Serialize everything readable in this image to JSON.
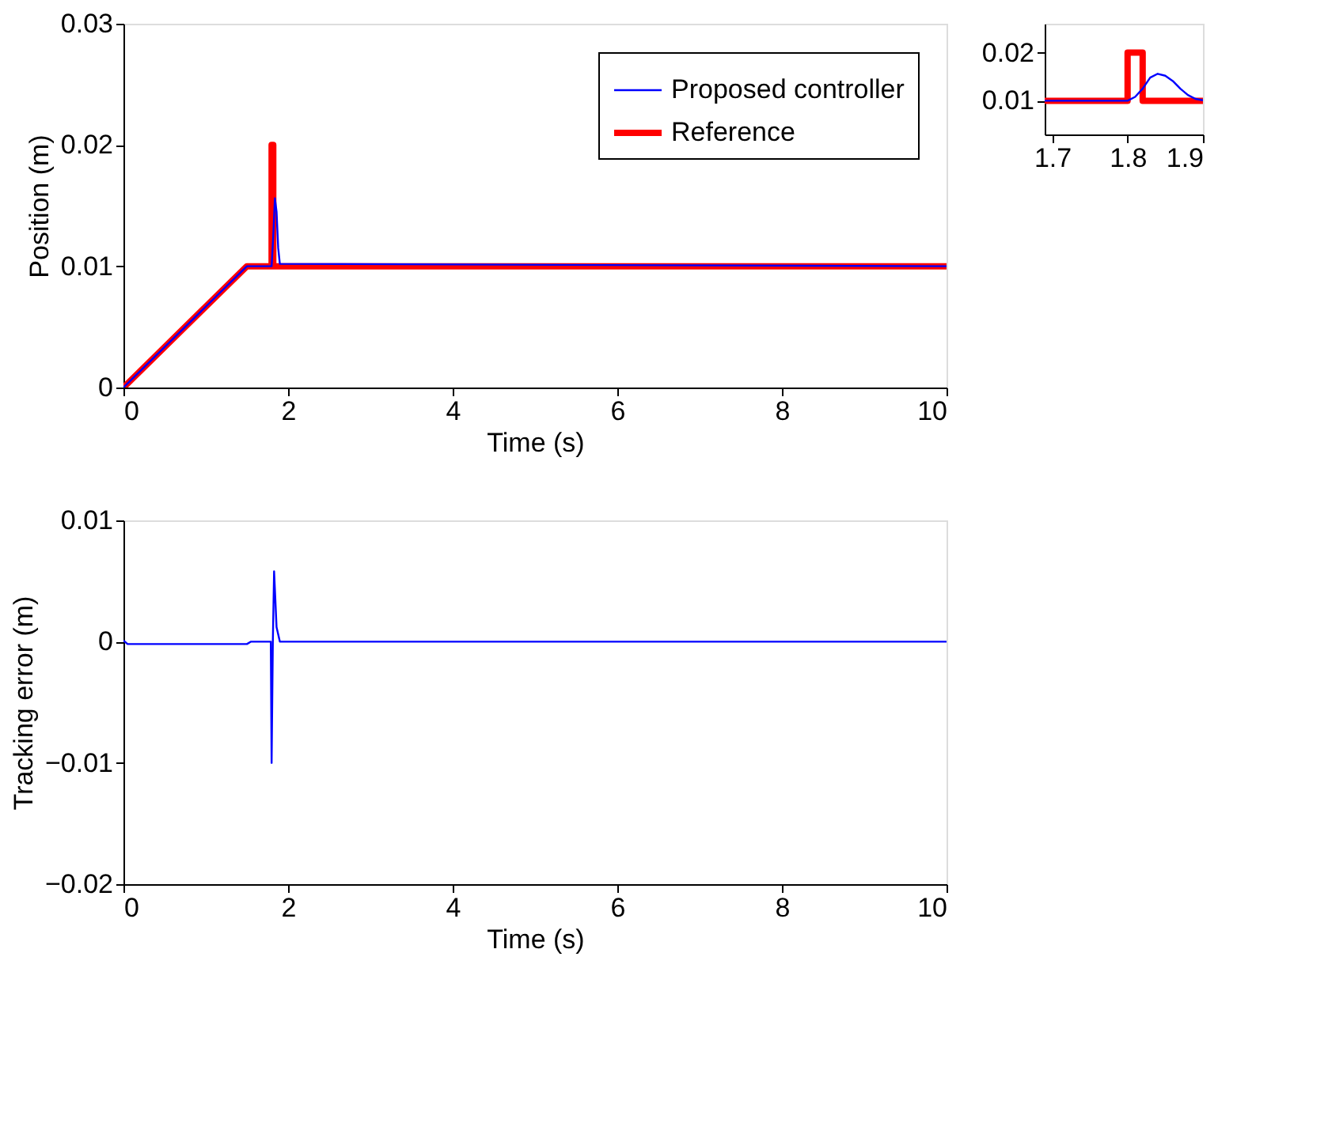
{
  "chart_data": [
    {
      "type": "line",
      "xlabel": "Time (s)",
      "ylabel": "Position (m)",
      "xlim": [
        0,
        10
      ],
      "ylim": [
        0,
        0.03
      ],
      "xticks": [
        0,
        2,
        4,
        6,
        8,
        10
      ],
      "yticks": [
        0,
        0.01,
        0.02,
        0.03
      ],
      "grid": false,
      "legend": "top right",
      "series": [
        {
          "name": "Proposed controller",
          "color": "#0000ff",
          "x": [
            0,
            1.5,
            1.8,
            1.82,
            1.84,
            1.86,
            1.88,
            1.9,
            10
          ],
          "values": [
            0,
            0.01,
            0.01,
            0.0125,
            0.0156,
            0.0145,
            0.0115,
            0.0102,
            0.01
          ]
        },
        {
          "name": "Reference",
          "color": "#ff0000",
          "x": [
            0,
            1.5,
            1.8,
            1.8,
            1.82,
            1.82,
            10
          ],
          "values": [
            0,
            0.01,
            0.01,
            0.02,
            0.02,
            0.01,
            0.01
          ]
        }
      ]
    },
    {
      "type": "line",
      "xlim": [
        1.69,
        1.9
      ],
      "ylim": [
        0.003,
        0.026
      ],
      "xticks": [
        1.7,
        1.8,
        1.9
      ],
      "yticks": [
        0.01,
        0.02
      ],
      "grid": false,
      "series": [
        {
          "color": "#0000ff",
          "x": [
            1.69,
            1.8,
            1.81,
            1.82,
            1.83,
            1.84,
            1.85,
            1.86,
            1.87,
            1.88,
            1.89,
            1.9
          ],
          "values": [
            0.01,
            0.01,
            0.0108,
            0.0125,
            0.0148,
            0.0156,
            0.0152,
            0.0141,
            0.0125,
            0.0112,
            0.0104,
            0.0101
          ]
        },
        {
          "color": "#ff0000",
          "x": [
            1.69,
            1.8,
            1.8,
            1.82,
            1.82,
            1.9
          ],
          "values": [
            0.01,
            0.01,
            0.02,
            0.02,
            0.01,
            0.01
          ]
        }
      ]
    },
    {
      "type": "line",
      "xlabel": "Time (s)",
      "ylabel": "Tracking error (m)",
      "xlim": [
        0,
        10
      ],
      "ylim": [
        -0.02,
        0.01
      ],
      "xticks": [
        0,
        2,
        4,
        6,
        8,
        10
      ],
      "yticks": [
        -0.02,
        -0.01,
        0,
        0.01
      ],
      "grid": false,
      "series": [
        {
          "color": "#0000ff",
          "x": [
            0,
            0.05,
            1.5,
            1.55,
            1.79,
            1.8,
            1.815,
            1.83,
            1.86,
            1.9,
            10
          ],
          "values": [
            0.0001,
            -0.0002,
            -0.0002,
            0,
            0,
            -0.01,
            0,
            0.0058,
            0.0012,
            0,
            0
          ]
        }
      ]
    }
  ]
}
